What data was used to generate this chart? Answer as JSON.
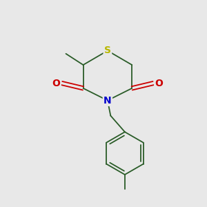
{
  "background_color": "#e8e8e8",
  "bond_color": "#2a5c28",
  "S_color": "#b8b800",
  "N_color": "#0000cc",
  "O_color": "#cc0000",
  "line_width": 1.3,
  "figsize": [
    3.0,
    3.0
  ],
  "dpi": 100,
  "xlim": [
    0,
    10
  ],
  "ylim": [
    0,
    10
  ]
}
